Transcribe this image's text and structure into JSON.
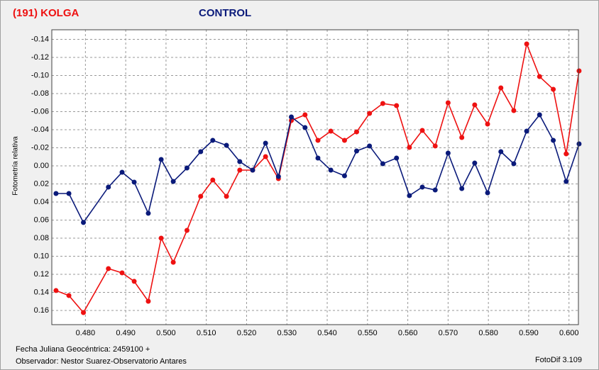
{
  "chart_data": {
    "type": "line",
    "series_title_left": "(191) KOLGA",
    "y_label": "Fotometría relativa",
    "footer": {
      "date_label": "Fecha Juliana Geocéntrica:  2459100 +",
      "observer": "Observador: Nestor Suarez-Observatorio Antares",
      "software": "FotoDif 3.109"
    },
    "y_inverted": true,
    "grid": true,
    "xlim": [
      0.47166,
      0.60234
    ],
    "ylim": [
      -0.1506,
      0.1757
    ],
    "xticks": [
      {
        "value": 0.48,
        "label": "0.480"
      },
      {
        "value": 0.49,
        "label": "0.490"
      },
      {
        "value": 0.5,
        "label": "0.500"
      },
      {
        "value": 0.51,
        "label": "0.510"
      },
      {
        "value": 0.52,
        "label": "0.520"
      },
      {
        "value": 0.53,
        "label": "0.530"
      },
      {
        "value": 0.54,
        "label": "0.540"
      },
      {
        "value": 0.55,
        "label": "0.550"
      },
      {
        "value": 0.56,
        "label": "0.560"
      },
      {
        "value": 0.57,
        "label": "0.570"
      },
      {
        "value": 0.58,
        "label": "0.580"
      },
      {
        "value": 0.59,
        "label": "0.590"
      },
      {
        "value": 0.6,
        "label": "0.600"
      }
    ],
    "yticks": [
      -0.14,
      -0.12,
      {
        "value": -0.1,
        "label": "-0.10"
      },
      -0.08,
      -0.06,
      -0.04,
      -0.02,
      {
        "value": 0,
        "label": "0.00"
      },
      0.02,
      0.04,
      0.06,
      0.08,
      {
        "value": 0.1,
        "label": "0.10"
      },
      0.12,
      0.14,
      0.16
    ],
    "x": [
      0.4727,
      0.4759,
      0.4795,
      0.4857,
      0.4891,
      0.4921,
      0.4956,
      0.4988,
      0.5018,
      0.5052,
      0.5086,
      0.5116,
      0.515,
      0.5183,
      0.5215,
      0.5247,
      0.5279,
      0.5311,
      0.5345,
      0.5377,
      0.5409,
      0.5443,
      0.5473,
      0.5505,
      0.5538,
      0.5572,
      0.5604,
      0.5636,
      0.5668,
      0.57,
      0.5734,
      0.5766,
      0.5798,
      0.5831,
      0.5863,
      0.5895,
      0.5927,
      0.5961,
      0.5993,
      0.6025
    ],
    "series": [
      {
        "name": "(191) KOLGA",
        "color": "#ee1111",
        "values": [
          0.138,
          0.1435,
          0.1624,
          0.1137,
          0.1184,
          0.1278,
          0.1498,
          0.08,
          0.1067,
          0.0714,
          0.0337,
          0.0157,
          0.0337,
          0.0047,
          0.0047,
          -0.0102,
          0.0141,
          -0.0502,
          -0.0565,
          -0.0282,
          -0.0384,
          -0.0282,
          -0.0376,
          -0.058,
          -0.069,
          -0.0667,
          -0.0204,
          -0.0392,
          -0.022,
          -0.0698,
          -0.0314,
          -0.0675,
          -0.0463,
          -0.0863,
          -0.0612,
          -0.1349,
          -0.0988,
          -0.0847,
          -0.0133,
          -0.1051
        ]
      },
      {
        "name": "CONTROL",
        "color": "#0a1a7a",
        "values": [
          0.0306,
          0.0306,
          0.0627,
          0.0235,
          0.0071,
          0.018,
          0.0525,
          -0.0071,
          0.0173,
          0.0024,
          -0.0157,
          -0.0282,
          -0.0227,
          -0.0047,
          0.0047,
          -0.0251,
          0.0118,
          -0.0541,
          -0.0424,
          -0.0086,
          0.0047,
          0.011,
          -0.0165,
          -0.022,
          -0.0024,
          -0.0086,
          0.0329,
          0.0235,
          0.0267,
          -0.0141,
          0.0251,
          -0.0031,
          0.0298,
          -0.0157,
          -0.0024,
          -0.0384,
          -0.0565,
          -0.0282,
          0.0173,
          -0.0243
        ]
      }
    ]
  }
}
